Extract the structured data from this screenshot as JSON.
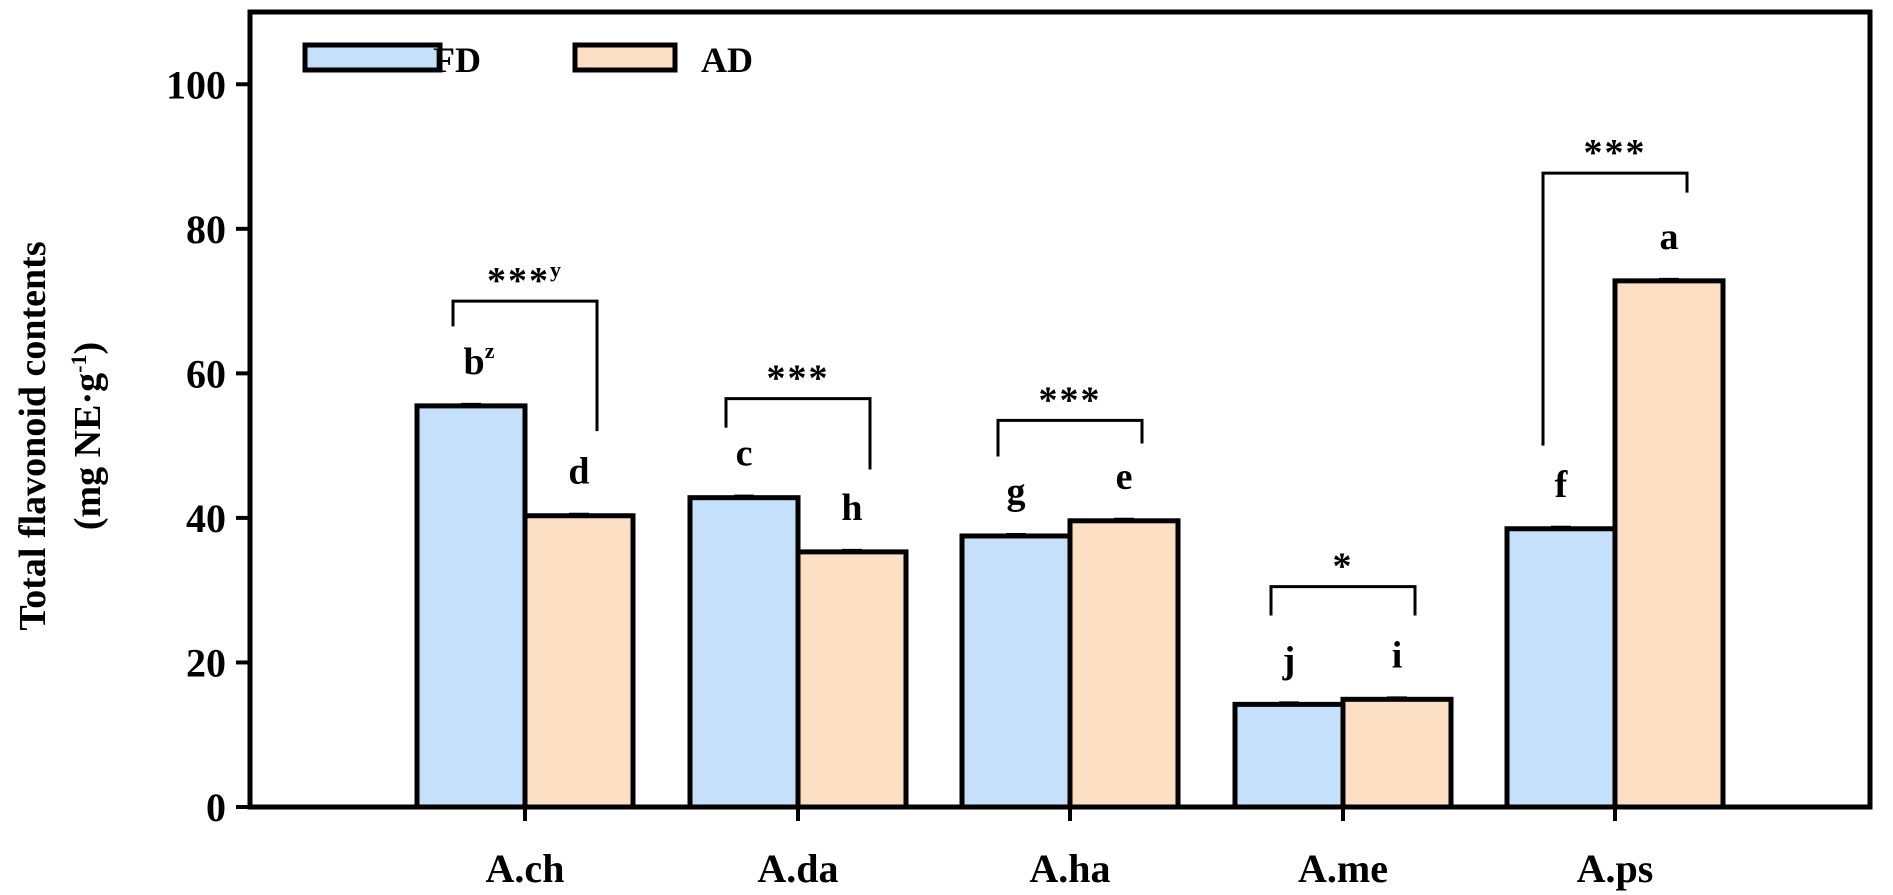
{
  "chart_data": {
    "type": "bar",
    "title": "",
    "xlabel": "",
    "ylabel_line1": "Total flavonoid contents",
    "ylabel_line2_prefix": "(mg NE·g",
    "ylabel_line2_sup": "-1",
    "ylabel_line2_suffix": ")",
    "ylim": [
      0,
      110
    ],
    "yticks": [
      0,
      20,
      40,
      60,
      80,
      100
    ],
    "grid": false,
    "legend_position": "top-left",
    "categories": [
      "A.ch",
      "A.da",
      "A.ha",
      "A.me",
      "A.ps"
    ],
    "series": [
      {
        "name": "FD",
        "color": "#c5e0fb",
        "values": [
          55.5,
          42.8,
          37.5,
          14.2,
          38.5
        ],
        "letters": [
          "b",
          "c",
          "g",
          "j",
          "f"
        ],
        "letter_sups": [
          "z",
          "",
          "",
          "",
          ""
        ]
      },
      {
        "name": "AD",
        "color": "#fde0c4",
        "values": [
          40.3,
          35.3,
          39.6,
          14.9,
          72.8
        ],
        "letters": [
          "d",
          "h",
          "e",
          "i",
          "a"
        ],
        "letter_sups": [
          "",
          "",
          "",
          "",
          ""
        ]
      }
    ],
    "significance": [
      {
        "category": "A.ch",
        "stars": "***",
        "sup": "y",
        "bracket_value": 70,
        "left_tick_to": 66.5,
        "right_tick_to": 52
      },
      {
        "category": "A.da",
        "stars": "***",
        "sup": "",
        "bracket_value": 56.5,
        "left_tick_to": 52.5,
        "right_tick_to": 46.7
      },
      {
        "category": "A.ha",
        "stars": "***",
        "sup": "",
        "bracket_value": 53.5,
        "left_tick_to": 48.5,
        "right_tick_to": 50.3
      },
      {
        "category": "A.me",
        "stars": "*",
        "sup": "",
        "bracket_value": 30.5,
        "left_tick_to": 26.5,
        "right_tick_to": 26.5
      },
      {
        "category": "A.ps",
        "stars": "***",
        "sup": "",
        "bracket_value": 87.7,
        "left_tick_to": 50,
        "right_tick_to": 85
      }
    ]
  }
}
